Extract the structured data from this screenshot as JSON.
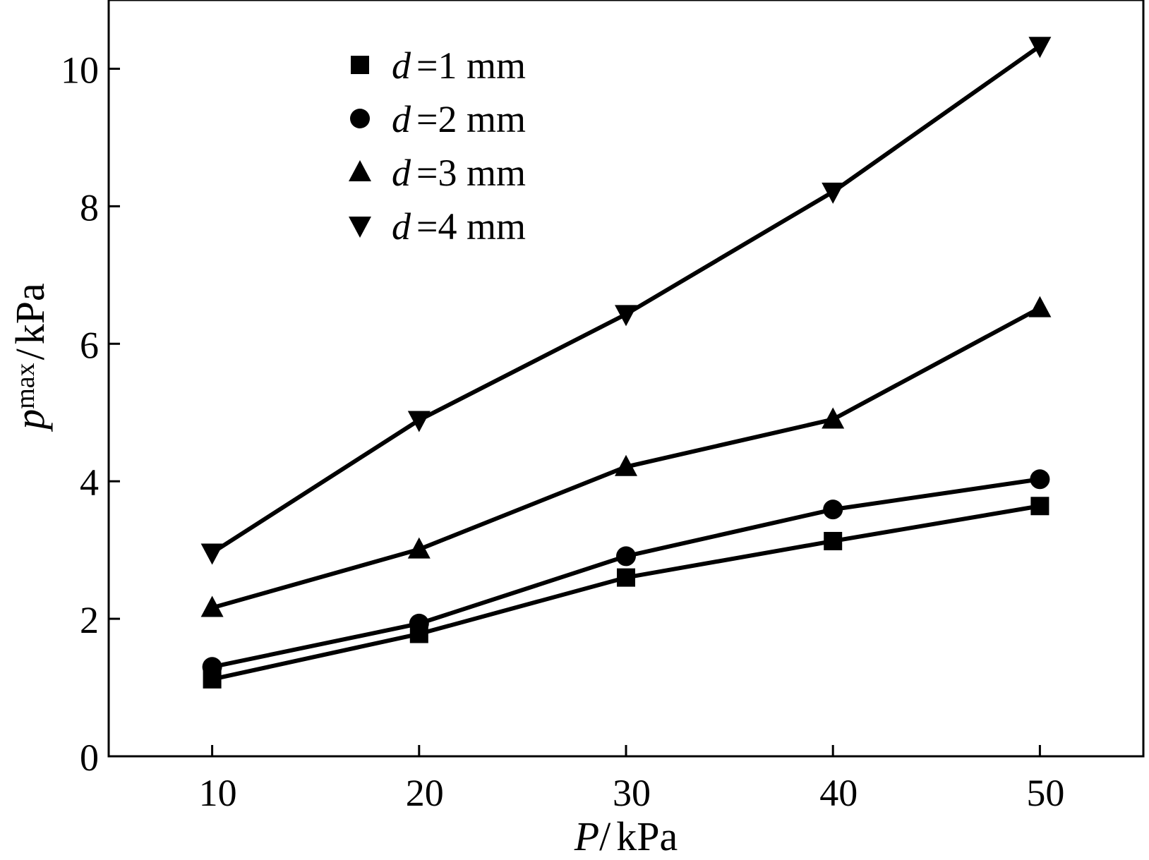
{
  "chart_data": {
    "type": "line",
    "x_label": {
      "var": "P",
      "sep": "/",
      "unit": "kPa"
    },
    "y_label": {
      "var": "p",
      "sub": "max",
      "sep": "/",
      "unit": "kPa"
    },
    "xlim": [
      5,
      55
    ],
    "ylim": [
      0,
      11
    ],
    "x_ticks": [
      10,
      20,
      30,
      40,
      50
    ],
    "x_tick_labels": [
      "10",
      "20",
      "30",
      "40",
      "50"
    ],
    "y_ticks": [
      0,
      2,
      4,
      6,
      8,
      10
    ],
    "y_tick_labels": [
      "0",
      "2",
      "4",
      "6",
      "8",
      "10"
    ],
    "grid": false,
    "legend_position": "top-left",
    "line_color": "#000000",
    "x": [
      10,
      20,
      30,
      40,
      50
    ],
    "series": [
      {
        "name": "d =1 mm",
        "name_var": "d",
        "name_rest": "=1 mm",
        "marker": "square",
        "values": [
          1.12,
          1.78,
          2.6,
          3.13,
          3.64
        ]
      },
      {
        "name": "d =2 mm",
        "name_var": "d",
        "name_rest": "=2 mm",
        "marker": "circle",
        "values": [
          1.3,
          1.93,
          2.91,
          3.59,
          4.03
        ]
      },
      {
        "name": "d =3 mm",
        "name_var": "d",
        "name_rest": "=3 mm",
        "marker": "triangle-up",
        "values": [
          2.16,
          3.01,
          4.21,
          4.9,
          6.52
        ]
      },
      {
        "name": "d =4 mm",
        "name_var": "d",
        "name_rest": "=4 mm",
        "marker": "triangle-down",
        "values": [
          2.96,
          4.89,
          6.43,
          8.21,
          10.33
        ]
      }
    ]
  }
}
